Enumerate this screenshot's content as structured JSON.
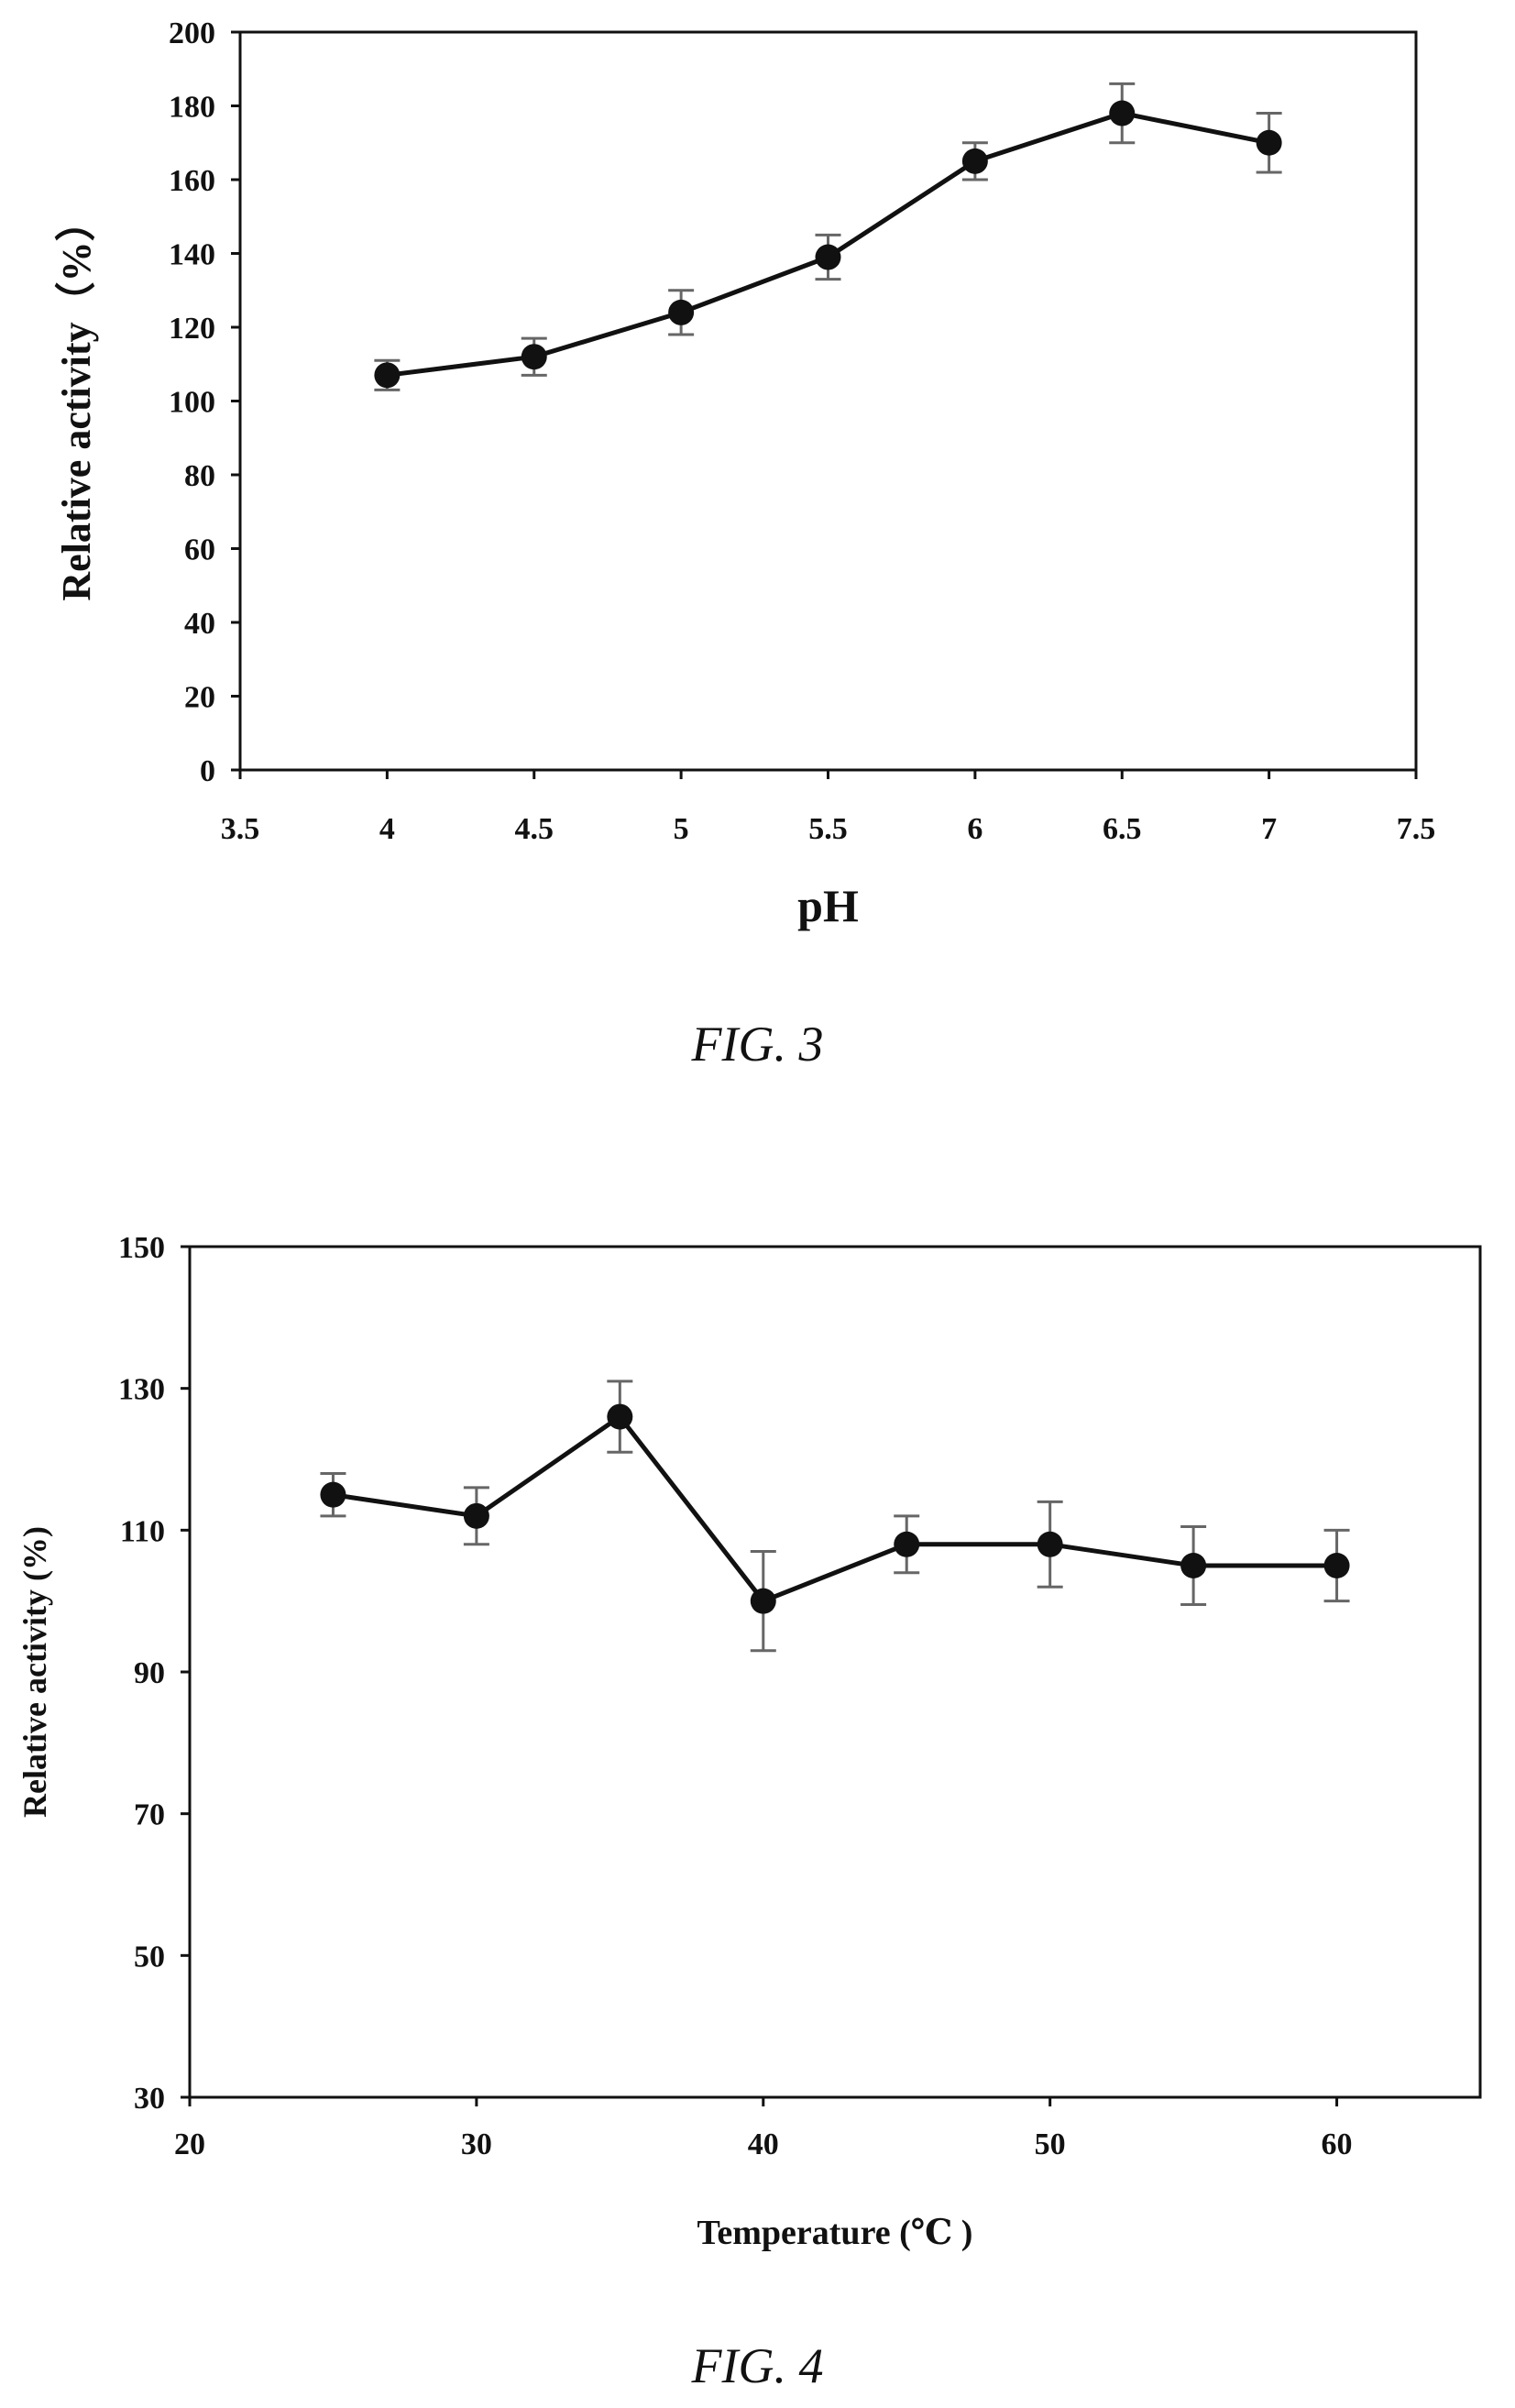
{
  "figures": [
    {
      "caption": "FIG. 3",
      "chart_data": {
        "type": "line",
        "title": "",
        "xlabel": "pH",
        "ylabel": "Relative activity（%）",
        "xlim": [
          3.5,
          7.5
        ],
        "ylim": [
          0,
          200
        ],
        "x_ticks": [
          "3.5",
          "4",
          "4.5",
          "5",
          "5.5",
          "6",
          "6.5",
          "7",
          "7.5"
        ],
        "y_ticks": [
          "0",
          "20",
          "40",
          "60",
          "80",
          "100",
          "120",
          "140",
          "160",
          "180",
          "200"
        ],
        "grid": false,
        "legend": "none",
        "series": [
          {
            "x": [
              4,
              4.5,
              5,
              5.5,
              6,
              6.5,
              7
            ],
            "y": [
              107,
              112,
              124,
              139,
              165,
              178,
              170
            ],
            "error": [
              4,
              5,
              6,
              6,
              5,
              8,
              8
            ]
          }
        ]
      }
    },
    {
      "caption": "FIG. 4",
      "chart_data": {
        "type": "line",
        "title": "",
        "xlabel": "Temperature (℃ )",
        "ylabel": "Relative activity (%)",
        "xlim": [
          20,
          65
        ],
        "ylim": [
          30,
          150
        ],
        "x_ticks": [
          "20",
          "30",
          "40",
          "50",
          "60"
        ],
        "y_ticks": [
          "30",
          "50",
          "70",
          "90",
          "110",
          "130",
          "150"
        ],
        "grid": false,
        "legend": "none",
        "series": [
          {
            "x": [
              25,
              30,
              35,
              40,
              45,
              50,
              55,
              60
            ],
            "y": [
              115,
              112,
              126,
              100,
              108,
              108,
              105,
              105
            ],
            "error": [
              3,
              4,
              5,
              7,
              4,
              6,
              5.5,
              5
            ]
          }
        ]
      }
    }
  ]
}
